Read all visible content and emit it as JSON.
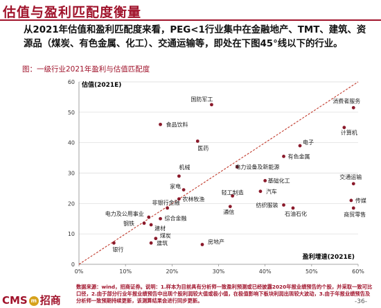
{
  "page": {
    "title": "估值与盈利匹配度衡量",
    "paragraph": "从2021年估值和盈利匹配度来看，PEG<1行业集中在金融地产、TMT、建筑、资源品（煤炭、有色金属、化工）、交通运输等，即处在下图45°线以下的行业。",
    "caption": "图：一级行业2021年盈利与估值匹配度",
    "footer_note": "数据来源：wind，招商证券。说明：1.样本为目前具有分析师一致盈利预测或已经披露2020年报业绩预告的个股，并采取一致可比口径，2.由于部分行业年报业绩预告中出现个股利润较大值或极小值，在极值影响下板块利润出现较大波动，3.由于年报业绩预告及分析师一致预期持续更新，该测算结果会进行同步更新。",
    "logo_text_1": "CMS",
    "logo_mark": "m",
    "logo_text_2": "招商",
    "page_number": "-36-"
  },
  "chart_data": {
    "type": "scatter",
    "ylabel": "估值(2021E)",
    "xlabel": "盈利增速(2021E)",
    "xlim": [
      0,
      0.6
    ],
    "ylim": [
      0,
      60
    ],
    "x_ticks": [
      "0%",
      "10%",
      "20%",
      "30%",
      "40%",
      "50%",
      "60%"
    ],
    "y_ticks": [
      "0",
      "10",
      "20",
      "30",
      "40",
      "50",
      "60"
    ],
    "point_color": "#8b1a2b",
    "reference_line": {
      "from": [
        0,
        0
      ],
      "to": [
        0.6,
        60
      ],
      "color": "#c0392b"
    },
    "points": [
      {
        "label": "国防军工",
        "x": 0.285,
        "y": 52.5
      },
      {
        "label": "消费者服务",
        "x": 0.59,
        "y": 51.5
      },
      {
        "label": "食品饮料",
        "x": 0.175,
        "y": 46
      },
      {
        "label": "计算机",
        "x": 0.57,
        "y": 45
      },
      {
        "label": "医药",
        "x": 0.255,
        "y": 40.5
      },
      {
        "label": "电子",
        "x": 0.475,
        "y": 39
      },
      {
        "label": "有色金属",
        "x": 0.44,
        "y": 35.5
      },
      {
        "label": "电力设备及新能源",
        "x": 0.34,
        "y": 32
      },
      {
        "label": "机械",
        "x": 0.215,
        "y": 29
      },
      {
        "label": "基础化工",
        "x": 0.4,
        "y": 27.5
      },
      {
        "label": "交通运输",
        "x": 0.59,
        "y": 26.5
      },
      {
        "label": "家电",
        "x": 0.225,
        "y": 24.5
      },
      {
        "label": "汽车",
        "x": 0.39,
        "y": 24
      },
      {
        "label": "轻工制造",
        "x": 0.33,
        "y": 22.5
      },
      {
        "label": "农林牧渔",
        "x": 0.215,
        "y": 21.5
      },
      {
        "label": "传媒",
        "x": 0.585,
        "y": 21
      },
      {
        "label": "纺织服装",
        "x": 0.44,
        "y": 19.5
      },
      {
        "label": "通信",
        "x": 0.325,
        "y": 19
      },
      {
        "label": "非银行金融",
        "x": 0.19,
        "y": 18.5
      },
      {
        "label": "石油石化",
        "x": 0.46,
        "y": 18.5
      },
      {
        "label": "商贸零售",
        "x": 0.59,
        "y": 18.5
      },
      {
        "label": "电力及公用事业",
        "x": 0.15,
        "y": 15.5
      },
      {
        "label": "综合金融",
        "x": 0.175,
        "y": 15
      },
      {
        "label": "钢铁",
        "x": 0.14,
        "y": 13.5
      },
      {
        "label": "建材",
        "x": 0.155,
        "y": 13
      },
      {
        "label": "煤炭",
        "x": 0.165,
        "y": 8.5
      },
      {
        "label": "建筑",
        "x": 0.155,
        "y": 7
      },
      {
        "label": "房地产",
        "x": 0.265,
        "y": 6.5
      },
      {
        "label": "银行",
        "x": 0.075,
        "y": 7
      }
    ]
  }
}
